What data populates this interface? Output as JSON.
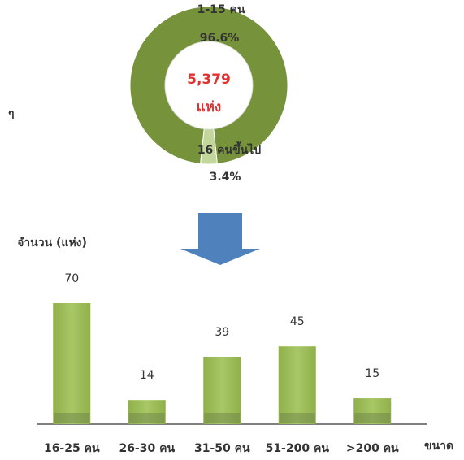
{
  "fragments": [
    "ๆ"
  ],
  "chart_data": [
    {
      "type": "donut",
      "center_text": [
        "5,379",
        "แห่ง"
      ],
      "categories": [
        "1-15 คน",
        "16 คนขึ้นไป"
      ],
      "values": [
        96.6,
        3.4
      ],
      "value_labels": [
        "96.6%",
        "3.4%"
      ],
      "colors": [
        "#76933c",
        "#c3d69b"
      ]
    },
    {
      "type": "bar",
      "y_label": "จำนวน (แห่ง)",
      "x_label": "ขนาด",
      "categories": [
        "16-25 คน",
        "26-30 คน",
        "31-50 คน",
        "51-200 คน",
        ">200 คน"
      ],
      "values": [
        70,
        14,
        39,
        45,
        15
      ],
      "color": "#9bbb59"
    }
  ]
}
